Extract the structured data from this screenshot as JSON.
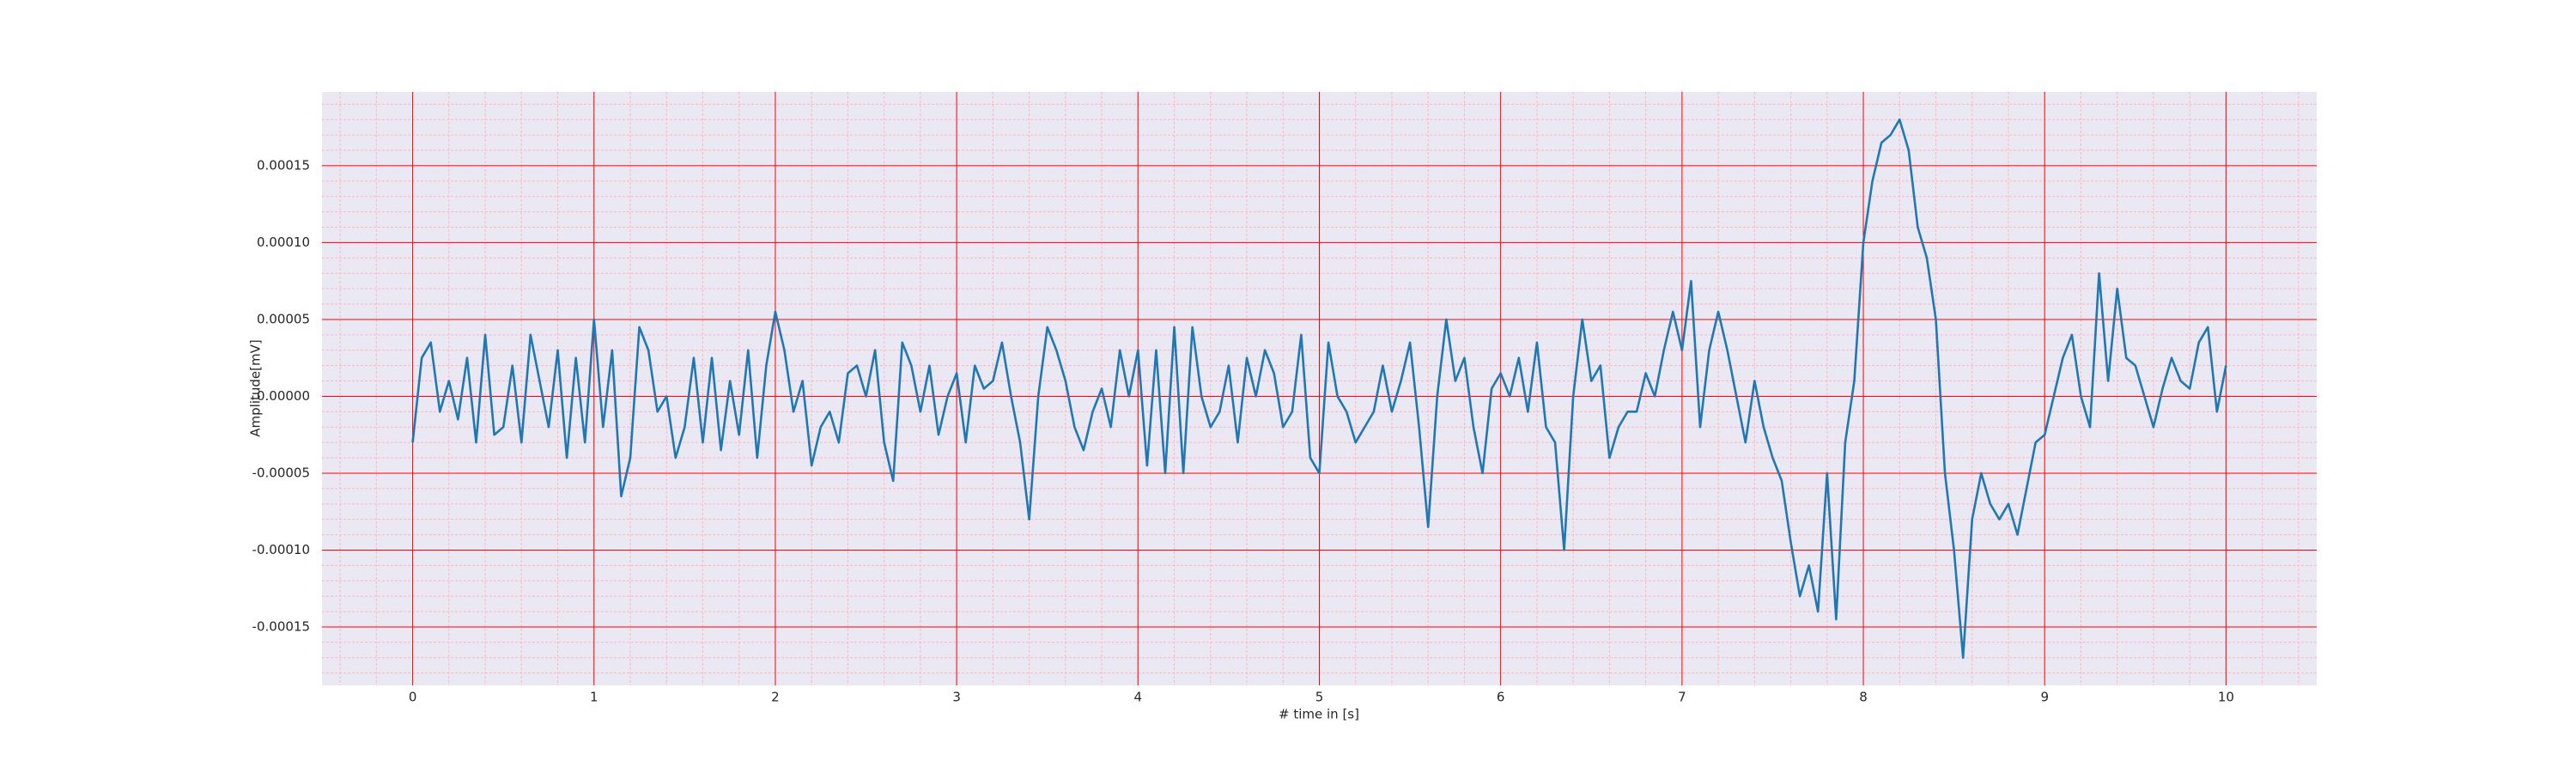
{
  "chart_data": {
    "type": "line",
    "xlabel": "# time in [s]",
    "ylabel": "Amplitude[mV]",
    "x": [
      0,
      0.05,
      0.1,
      0.15,
      0.2,
      0.25,
      0.3,
      0.35,
      0.4,
      0.45,
      0.5,
      0.55,
      0.6,
      0.65,
      0.7,
      0.75,
      0.8,
      0.85,
      0.9,
      0.95,
      1,
      1.05,
      1.1,
      1.15,
      1.2,
      1.25,
      1.3,
      1.35,
      1.4,
      1.45,
      1.5,
      1.55,
      1.6,
      1.65,
      1.7,
      1.75,
      1.8,
      1.85,
      1.9,
      1.95,
      2,
      2.05,
      2.1,
      2.15,
      2.2,
      2.25,
      2.3,
      2.35,
      2.4,
      2.45,
      2.5,
      2.55,
      2.6,
      2.65,
      2.7,
      2.75,
      2.8,
      2.85,
      2.9,
      2.95,
      3,
      3.05,
      3.1,
      3.15,
      3.2,
      3.25,
      3.3,
      3.35,
      3.4,
      3.45,
      3.5,
      3.55,
      3.6,
      3.65,
      3.7,
      3.75,
      3.8,
      3.85,
      3.9,
      3.95,
      4,
      4.05,
      4.1,
      4.15,
      4.2,
      4.25,
      4.3,
      4.35,
      4.4,
      4.45,
      4.5,
      4.55,
      4.6,
      4.65,
      4.7,
      4.75,
      4.8,
      4.85,
      4.9,
      4.95,
      5,
      5.05,
      5.1,
      5.15,
      5.2,
      5.25,
      5.3,
      5.35,
      5.4,
      5.45,
      5.5,
      5.55,
      5.6,
      5.65,
      5.7,
      5.75,
      5.8,
      5.85,
      5.9,
      5.95,
      6,
      6.05,
      6.1,
      6.15,
      6.2,
      6.25,
      6.3,
      6.35,
      6.4,
      6.45,
      6.5,
      6.55,
      6.6,
      6.65,
      6.7,
      6.75,
      6.8,
      6.85,
      6.9,
      6.95,
      7,
      7.05,
      7.1,
      7.15,
      7.2,
      7.25,
      7.3,
      7.35,
      7.4,
      7.45,
      7.5,
      7.55,
      7.6,
      7.65,
      7.7,
      7.75,
      7.8,
      7.85,
      7.9,
      7.95,
      8,
      8.05,
      8.1,
      8.15,
      8.2,
      8.25,
      8.3,
      8.35,
      8.4,
      8.45,
      8.5,
      8.55,
      8.6,
      8.65,
      8.7,
      8.75,
      8.8,
      8.85,
      8.9,
      8.95,
      9,
      9.05,
      9.1,
      9.15,
      9.2,
      9.25,
      9.3,
      9.35,
      9.4,
      9.45,
      9.5,
      9.55,
      9.6,
      9.65,
      9.7,
      9.75,
      9.8,
      9.85,
      9.9,
      9.95,
      10
    ],
    "series": [
      {
        "color": "#1f77b4",
        "values": [
          -3e-05,
          2.5e-05,
          3.5e-05,
          -1e-05,
          1e-05,
          -1.5e-05,
          2.5e-05,
          -3e-05,
          4e-05,
          -2.5e-05,
          -2e-05,
          2e-05,
          -3e-05,
          4e-05,
          1e-05,
          -2e-05,
          3e-05,
          -4e-05,
          2.5e-05,
          -3e-05,
          5e-05,
          -2e-05,
          3e-05,
          -6.5e-05,
          -4e-05,
          4.5e-05,
          3e-05,
          -1e-05,
          0,
          -4e-05,
          -2e-05,
          2.5e-05,
          -3e-05,
          2.5e-05,
          -3.5e-05,
          1e-05,
          -2.5e-05,
          3e-05,
          -4e-05,
          2e-05,
          5.5e-05,
          3e-05,
          -1e-05,
          1e-05,
          -4.5e-05,
          -2e-05,
          -1e-05,
          -3e-05,
          1.5e-05,
          2e-05,
          0,
          3e-05,
          -3e-05,
          -5.5e-05,
          3.5e-05,
          2e-05,
          -1e-05,
          2e-05,
          -2.5e-05,
          0,
          1.5e-05,
          -3e-05,
          2e-05,
          5e-06,
          1e-05,
          3.5e-05,
          0,
          -3e-05,
          -8e-05,
          0,
          4.5e-05,
          3e-05,
          1e-05,
          -2e-05,
          -3.5e-05,
          -1e-05,
          5e-06,
          -2e-05,
          3e-05,
          0,
          3e-05,
          -4.5e-05,
          3e-05,
          -5e-05,
          4.5e-05,
          -5e-05,
          4.5e-05,
          0,
          -2e-05,
          -1e-05,
          2e-05,
          -3e-05,
          2.5e-05,
          0,
          3e-05,
          1.5e-05,
          -2e-05,
          -1e-05,
          4e-05,
          -4e-05,
          -5e-05,
          3.5e-05,
          0,
          -1e-05,
          -3e-05,
          -2e-05,
          -1e-05,
          2e-05,
          -1e-05,
          1e-05,
          3.5e-05,
          -2e-05,
          -8.5e-05,
          0,
          5e-05,
          1e-05,
          2.5e-05,
          -2e-05,
          -5e-05,
          5e-06,
          1.5e-05,
          0,
          2.5e-05,
          -1e-05,
          3.5e-05,
          -2e-05,
          -3e-05,
          -0.0001,
          0,
          5e-05,
          1e-05,
          2e-05,
          -4e-05,
          -2e-05,
          -1e-05,
          -1e-05,
          1.5e-05,
          0,
          3e-05,
          5.5e-05,
          3e-05,
          7.5e-05,
          -2e-05,
          3e-05,
          5.5e-05,
          3e-05,
          0,
          -3e-05,
          1e-05,
          -2e-05,
          -4e-05,
          -5.5e-05,
          -9.5e-05,
          -0.00013,
          -0.00011,
          -0.00014,
          -5e-05,
          -0.000145,
          -3e-05,
          1e-05,
          0.0001,
          0.00014,
          0.000165,
          0.00017,
          0.00018,
          0.00016,
          0.00011,
          9e-05,
          5e-05,
          -5e-05,
          -0.0001,
          -0.00017,
          -8e-05,
          -5e-05,
          -7e-05,
          -8e-05,
          -7e-05,
          -9e-05,
          -6e-05,
          -3e-05,
          -2.5e-05,
          0,
          2.5e-05,
          4e-05,
          0,
          -2e-05,
          8e-05,
          1e-05,
          7e-05,
          2.5e-05,
          2e-05,
          0,
          -2e-05,
          5e-06,
          2.5e-05,
          1e-05,
          5e-06,
          3.5e-05,
          4.5e-05,
          -1e-05,
          2e-05
        ]
      }
    ],
    "xlim": [
      -0.5,
      10.5
    ],
    "xticks": [
      0,
      1,
      2,
      3,
      4,
      5,
      6,
      7,
      8,
      9,
      10
    ],
    "ylim": [
      -0.000188,
      0.000198
    ],
    "yticks": [
      {
        "value": -0.00015,
        "label": "-0.00015"
      },
      {
        "value": -0.0001,
        "label": "-0.00010"
      },
      {
        "value": -5e-05,
        "label": "-0.00005"
      },
      {
        "value": 0,
        "label": "0.00000"
      },
      {
        "value": 5e-05,
        "label": "0.00005"
      },
      {
        "value": 0.0001,
        "label": "0.00010"
      },
      {
        "value": 0.00015,
        "label": "0.00015"
      }
    ],
    "grid": true,
    "grid_color": "#ff0000",
    "minor_grid": true,
    "minor_grid_color": "#ffb6c1",
    "background": "#eae8f2"
  }
}
